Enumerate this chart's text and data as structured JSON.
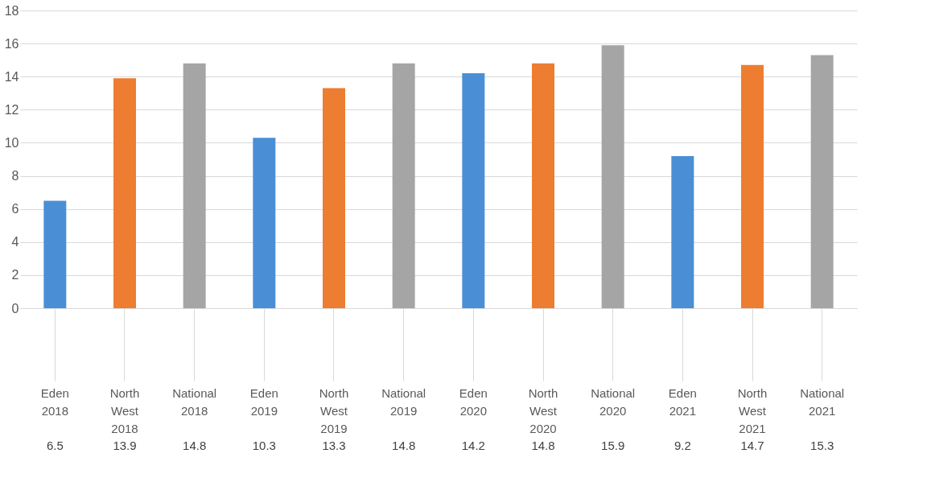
{
  "chart_data": {
    "type": "bar",
    "categories": [
      "Eden 2018",
      "North West 2018",
      "National 2018",
      "Eden 2019",
      "North West 2019",
      "National 2019",
      "Eden 2020",
      "North West 2020",
      "National 2020",
      "Eden 2021",
      "North West 2021",
      "National 2021"
    ],
    "values": [
      6.5,
      13.9,
      14.8,
      10.3,
      13.3,
      14.8,
      14.2,
      14.8,
      15.9,
      9.2,
      14.7,
      15.3
    ],
    "colors": [
      "#4a8fd6",
      "#ed7d31",
      "#a5a5a5",
      "#4a8fd6",
      "#ed7d31",
      "#a5a5a5",
      "#4a8fd6",
      "#ed7d31",
      "#a5a5a5",
      "#4a8fd6",
      "#ed7d31",
      "#a5a5a5"
    ],
    "ylim": [
      0,
      18
    ],
    "yticks": [
      0,
      2,
      4,
      6,
      8,
      10,
      12,
      14,
      16,
      18
    ],
    "grid": "y",
    "data_labels": true
  }
}
